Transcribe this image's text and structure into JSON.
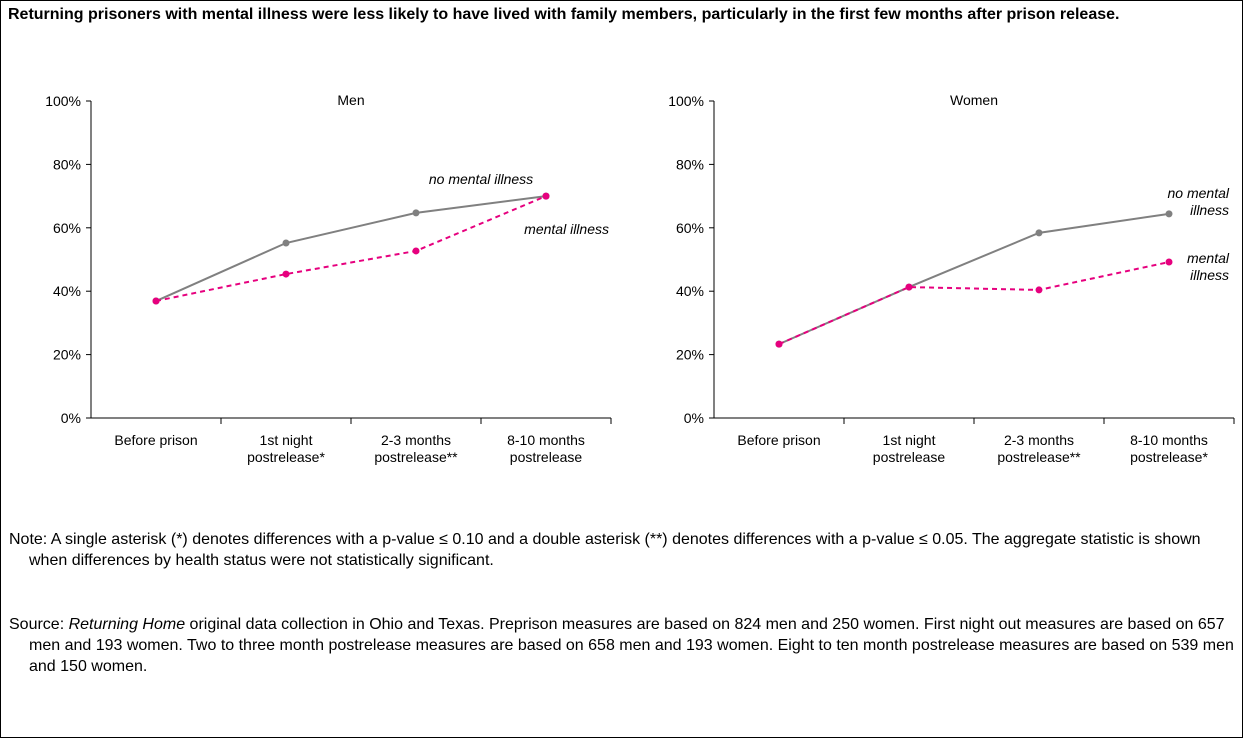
{
  "title": "Returning prisoners with mental illness were less likely to have lived with family members, particularly in the first few months after prison release.",
  "chart_data": [
    {
      "type": "line",
      "title": "Men",
      "categories": [
        "Before prison",
        "1st night\npostrelease*",
        "2-3 months\npostrelease**",
        "8-10 months\npostrelease"
      ],
      "series": [
        {
          "name": "no mental illness",
          "color": "#808080",
          "dashed": false,
          "values": [
            36.9,
            55.2,
            64.7,
            70
          ]
        },
        {
          "name": "mental illness",
          "color": "#e6007e",
          "dashed": true,
          "values": [
            36.9,
            45.4,
            52.7,
            70
          ]
        }
      ],
      "ylim": [
        0,
        100
      ],
      "yticks": [
        {
          "value": 0,
          "label": "0%"
        },
        {
          "value": 20,
          "label": "20%"
        },
        {
          "value": 40,
          "label": "40%"
        },
        {
          "value": 60,
          "label": "60%"
        },
        {
          "value": 80,
          "label": "80%"
        },
        {
          "value": 100,
          "label": "100%"
        }
      ]
    },
    {
      "type": "line",
      "title": "Women",
      "categories": [
        "Before prison",
        "1st night\npostrelease",
        "2-3 months\npostrelease**",
        "8-10 months\npostrelease*"
      ],
      "series": [
        {
          "name": "no mental\nillness",
          "color": "#808080",
          "dashed": false,
          "values": [
            23.3,
            41.3,
            58.4,
            64.4
          ]
        },
        {
          "name": "mental\nillness",
          "color": "#e6007e",
          "dashed": true,
          "values": [
            23.3,
            41.3,
            40.4,
            49.2
          ]
        }
      ],
      "ylim": [
        0,
        100
      ],
      "yticks": [
        {
          "value": 0,
          "label": "0%"
        },
        {
          "value": 20,
          "label": "20%"
        },
        {
          "value": 40,
          "label": "40%"
        },
        {
          "value": 60,
          "label": "60%"
        },
        {
          "value": 80,
          "label": "80%"
        },
        {
          "value": 100,
          "label": "100%"
        }
      ]
    }
  ],
  "note": "Note: A single asterisk (*) denotes differences with a p-value ≤ 0.10 and a double asterisk (**) denotes differences with a p-value ≤ 0.05.  The aggregate statistic is shown when differences by health status were not statistically significant.",
  "source": {
    "label": "Source: ",
    "title": "Returning Home",
    "text": " original data collection in Ohio and Texas.  Preprison measures are based on 824 men and 250 women.  First night out measures are based on 657 men and 193 women.  Two to three month postrelease measures are based on 658 men and 193 women.  Eight to ten month postrelease measures are based on 539 men and 150 women."
  }
}
